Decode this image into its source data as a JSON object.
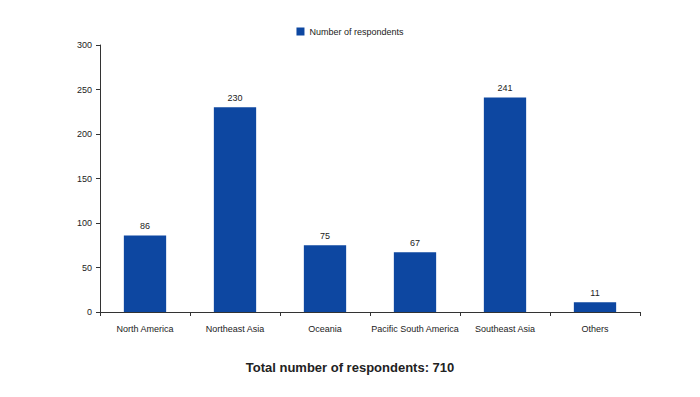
{
  "chart_data": {
    "type": "bar",
    "categories": [
      "North America",
      "Northeast Asia",
      "Oceania",
      "Pacific South America",
      "Southeast Asia",
      "Others"
    ],
    "series": [
      {
        "name": "Number of respondents",
        "color": "#0d47a1",
        "values": [
          86,
          230,
          75,
          67,
          241,
          11
        ]
      }
    ],
    "annotation": "Total number of respondents: 710",
    "ylim": [
      0,
      300
    ],
    "yticks": [
      0,
      50,
      100,
      150,
      200,
      250,
      300
    ],
    "grid": false,
    "legend": "top",
    "data_labels": true
  }
}
